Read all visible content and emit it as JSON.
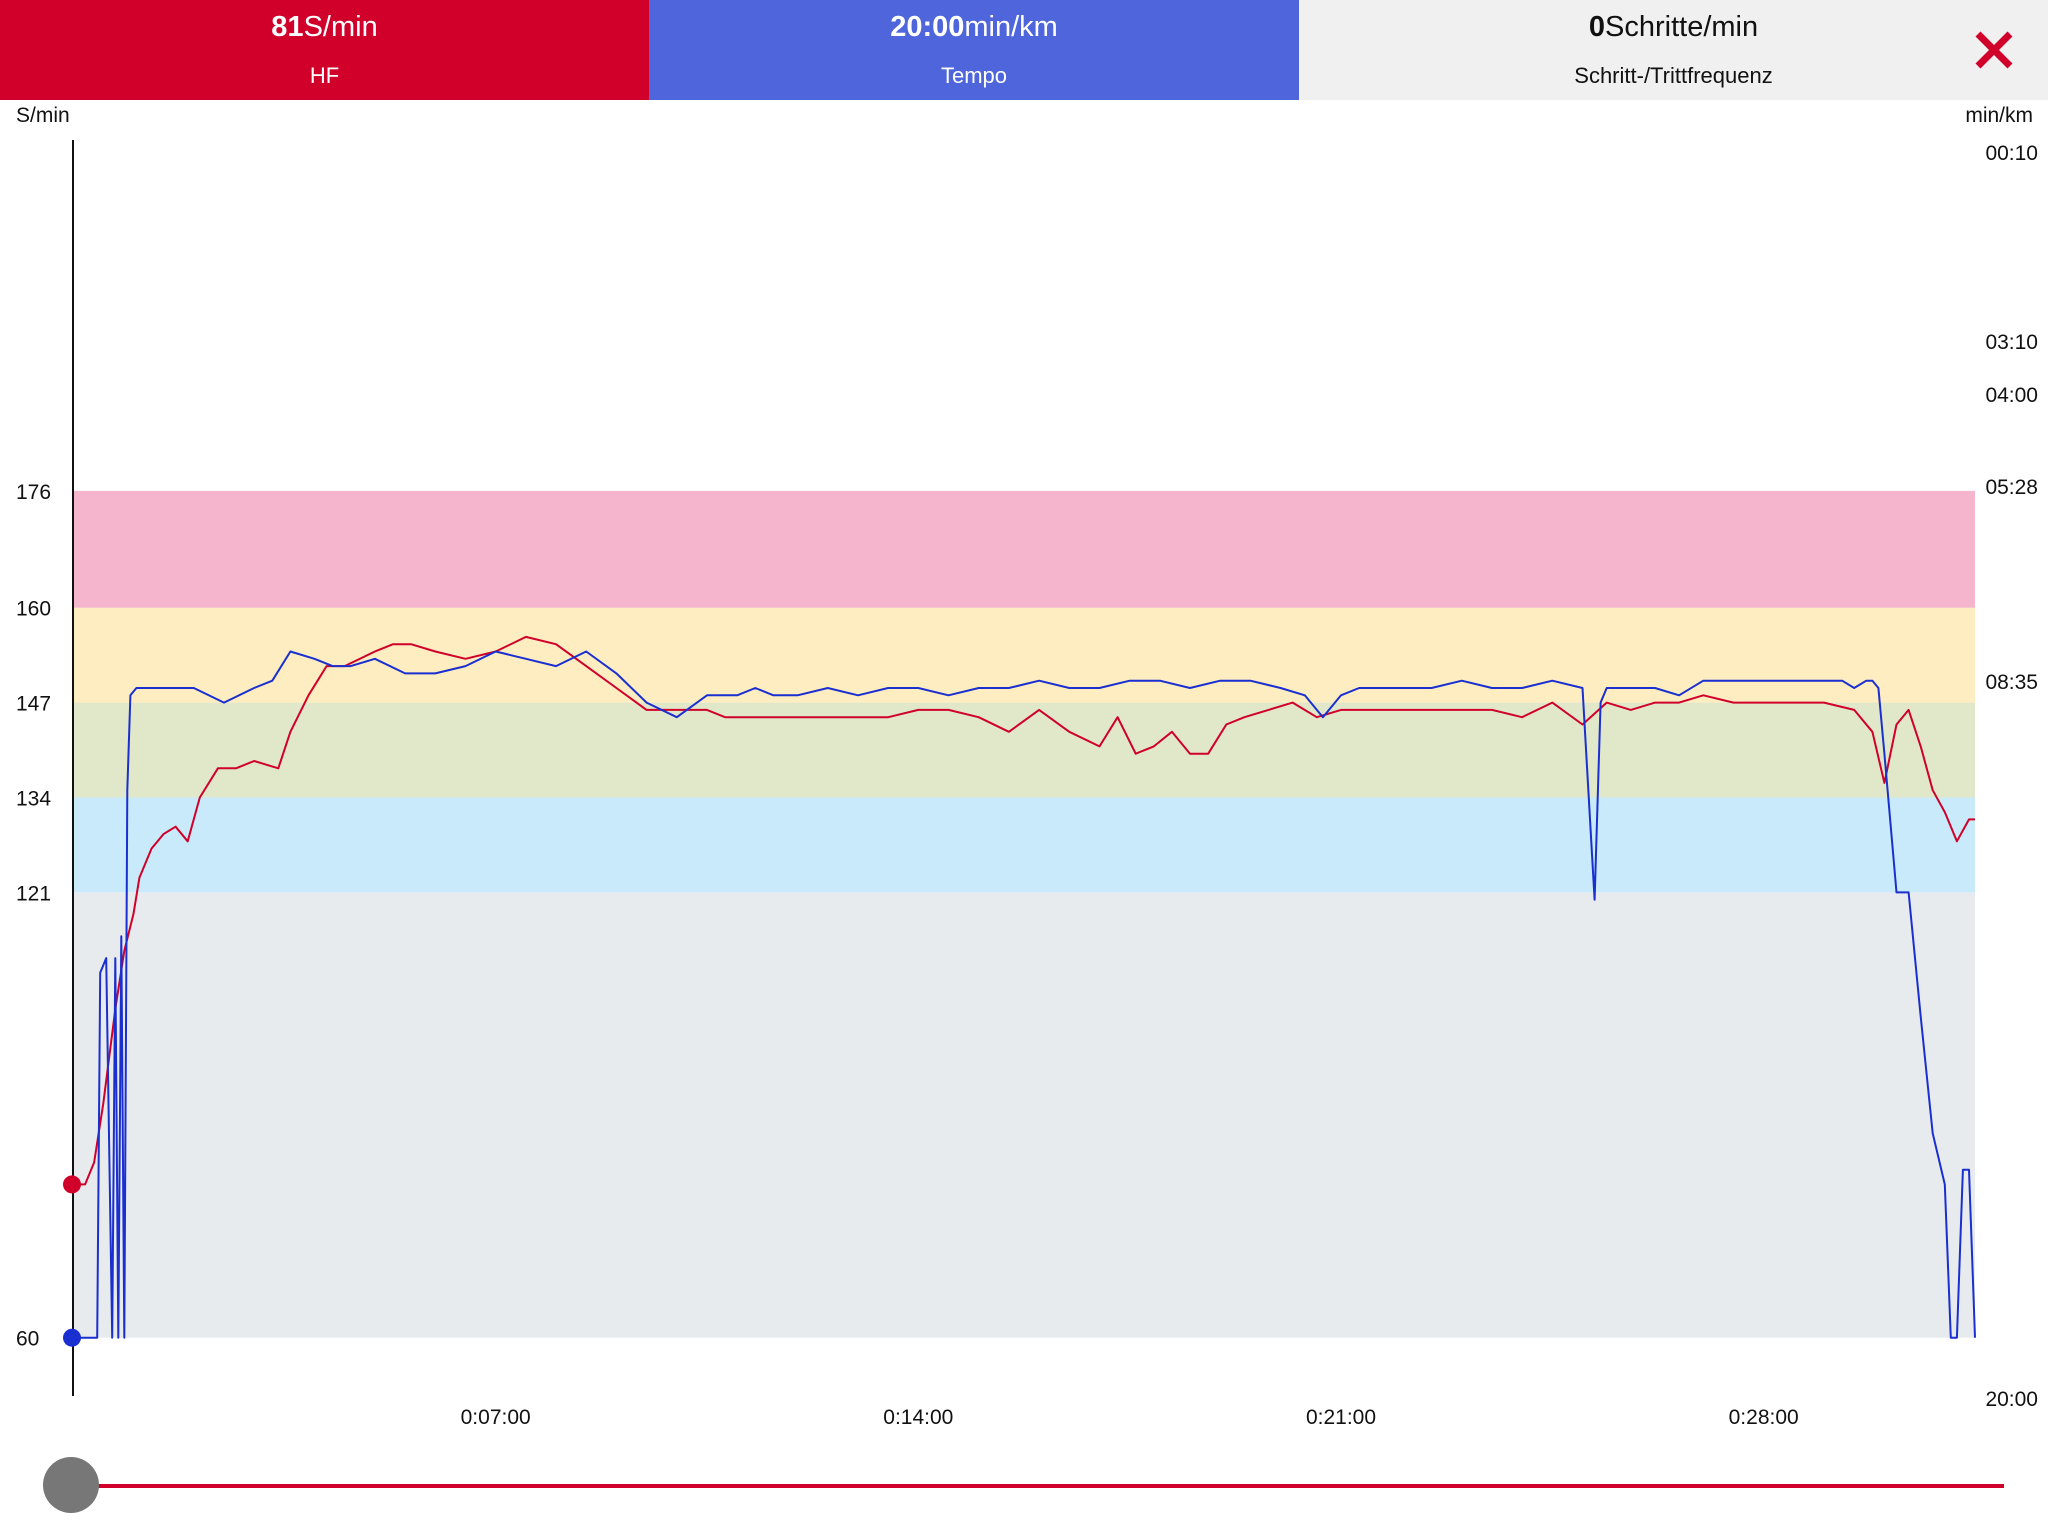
{
  "header": {
    "metrics": [
      {
        "value": "81",
        "unit": "S/min",
        "label": "HF",
        "color": "#d0002a",
        "text_color": "#ffffff"
      },
      {
        "value": "20:00",
        "unit": "min/km",
        "label": "Tempo",
        "color": "#4e65dc",
        "text_color": "#ffffff"
      },
      {
        "value": "0",
        "unit": "Schritte/min",
        "label": "Schritt-/Trittfrequenz",
        "color": "#f0f0f0",
        "text_color": "#111111"
      }
    ],
    "close_icon": "close-icon",
    "close_color": "#d0002a"
  },
  "chart_data": {
    "type": "line",
    "x_unit": "h:mm:ss",
    "x_range": [
      "0:00:00",
      "0:31:30"
    ],
    "x_ticks": [
      "0:07:00",
      "0:14:00",
      "0:21:00",
      "0:28:00"
    ],
    "y_left": {
      "label": "S/min",
      "range": [
        53,
        190
      ],
      "ticks": [
        60,
        121,
        134,
        147,
        160,
        176
      ]
    },
    "y_right": {
      "label": "min/km",
      "ticks": [
        "00:10",
        "03:10",
        "04:00",
        "05:28",
        "08:35",
        "20:00"
      ]
    },
    "zones": [
      {
        "from": 60,
        "to": 121,
        "color": "#e8ebed"
      },
      {
        "from": 121,
        "to": 134,
        "color": "#c9eafa"
      },
      {
        "from": 134,
        "to": 147,
        "color": "#e1e8c9"
      },
      {
        "from": 147,
        "to": 160,
        "color": "#fdedc0"
      },
      {
        "from": 160,
        "to": 176,
        "color": "#f5b5cd"
      }
    ],
    "grid": false,
    "series": [
      {
        "name": "HF",
        "unit": "S/min",
        "color": "#d0002a",
        "x_minutes": [
          0,
          0.2,
          0.35,
          0.5,
          0.7,
          0.85,
          1.0,
          1.1,
          1.3,
          1.5,
          1.7,
          1.9,
          2.1,
          2.4,
          2.7,
          3.0,
          3.4,
          3.6,
          3.9,
          4.2,
          4.5,
          5.0,
          5.3,
          5.6,
          6.0,
          6.5,
          7.0,
          7.5,
          8.0,
          8.5,
          9.0,
          9.5,
          10.0,
          10.5,
          10.8,
          11.0,
          11.3,
          11.6,
          12.0,
          12.5,
          13.0,
          13.5,
          14.0,
          14.5,
          15.0,
          15.5,
          16.0,
          16.5,
          17.0,
          17.3,
          17.6,
          17.9,
          18.2,
          18.5,
          18.8,
          19.1,
          19.4,
          19.8,
          20.2,
          20.6,
          21.0,
          21.5,
          22.0,
          22.5,
          23.0,
          23.5,
          24.0,
          24.5,
          25.0,
          25.4,
          25.8,
          26.2,
          26.6,
          27.0,
          27.5,
          28.0,
          28.5,
          29.0,
          29.5,
          29.8,
          30.0,
          30.2,
          30.4,
          30.6,
          30.8,
          31.0,
          31.2,
          31.4,
          31.5
        ],
        "y": [
          81,
          81,
          84,
          92,
          105,
          113,
          118,
          123,
          127,
          129,
          130,
          128,
          134,
          138,
          138,
          139,
          138,
          143,
          148,
          152,
          152,
          154,
          155,
          155,
          154,
          153,
          154,
          156,
          155,
          152,
          149,
          146,
          146,
          146,
          145,
          145,
          145,
          145,
          145,
          145,
          145,
          145,
          146,
          146,
          145,
          143,
          146,
          143,
          141,
          145,
          140,
          141,
          143,
          140,
          140,
          144,
          145,
          146,
          147,
          145,
          146,
          146,
          146,
          146,
          146,
          146,
          145,
          147,
          144,
          147,
          146,
          147,
          147,
          148,
          147,
          147,
          147,
          147,
          146,
          143,
          136,
          144,
          146,
          141,
          135,
          132,
          128,
          131,
          131
        ]
      },
      {
        "name": "Tempo",
        "unit": "min/km",
        "color": "#1a2fd0",
        "x_minutes": [
          0,
          0.4,
          0.45,
          0.55,
          0.65,
          0.7,
          0.75,
          0.8,
          0.85,
          0.9,
          0.95,
          1.05,
          1.2,
          1.5,
          2.0,
          2.5,
          3.0,
          3.3,
          3.6,
          4.0,
          4.3,
          4.6,
          5.0,
          5.5,
          6.0,
          6.5,
          7.0,
          7.5,
          8.0,
          8.5,
          9.0,
          9.5,
          10.0,
          10.5,
          10.8,
          11.0,
          11.3,
          11.6,
          12.0,
          12.5,
          13.0,
          13.5,
          14.0,
          14.5,
          15.0,
          15.5,
          16.0,
          16.5,
          17.0,
          17.5,
          18.0,
          18.5,
          19.0,
          19.5,
          20.0,
          20.4,
          20.7,
          21.0,
          21.3,
          21.6,
          22.0,
          22.5,
          23.0,
          23.5,
          24.0,
          24.5,
          25.0,
          25.2,
          25.3,
          25.4,
          25.6,
          25.8,
          26.2,
          26.6,
          27.0,
          27.5,
          28.0,
          28.5,
          29.0,
          29.3,
          29.5,
          29.7,
          29.8,
          29.9,
          30.0,
          30.2,
          30.4,
          30.6,
          30.8,
          31.0,
          31.1,
          31.2,
          31.3,
          31.4,
          31.5
        ],
        "y": [
          60,
          60,
          110,
          112,
          60,
          112,
          60,
          115,
          60,
          135,
          148,
          149,
          149,
          149,
          149,
          147,
          149,
          150,
          154,
          153,
          152,
          152,
          153,
          151,
          151,
          152,
          154,
          153,
          152,
          154,
          151,
          147,
          145,
          148,
          148,
          148,
          149,
          148,
          148,
          149,
          148,
          149,
          149,
          148,
          149,
          149,
          150,
          149,
          149,
          150,
          150,
          149,
          150,
          150,
          149,
          148,
          145,
          148,
          149,
          149,
          149,
          149,
          150,
          149,
          149,
          150,
          149,
          120,
          147,
          149,
          149,
          149,
          149,
          148,
          150,
          150,
          150,
          150,
          150,
          150,
          149,
          150,
          150,
          149,
          140,
          121,
          121,
          104,
          88,
          81,
          60,
          60,
          83,
          83,
          60
        ]
      }
    ]
  },
  "slider": {
    "value": 0,
    "track_color": "#d0002a"
  }
}
